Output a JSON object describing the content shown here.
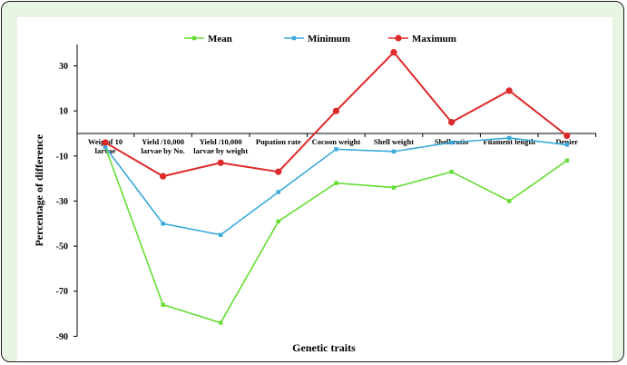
{
  "colors": {
    "frame_border": "#1a1a1a",
    "frame_background": "#e9f5e3",
    "panel_background": "#ffffff",
    "mean": "#66dd33",
    "minimum": "#3aaadd",
    "maximum": "#dd2a2a"
  },
  "chart_data": {
    "type": "line",
    "title": "",
    "xlabel": "Genetic traits",
    "ylabel": "Percentage of difference",
    "ylim": [
      -90,
      40
    ],
    "yticks": [
      30,
      10,
      -10,
      -30,
      -50,
      -70,
      -90
    ],
    "grid": false,
    "legend_position": "top",
    "categories": [
      [
        "Weig of 10",
        "larvae"
      ],
      [
        "Yield /10,000",
        "larvae by No."
      ],
      [
        "Yield /10,000",
        "larvae by weight"
      ],
      [
        "Pupation rate"
      ],
      [
        "Cocoon weight"
      ],
      [
        "Shell weight"
      ],
      [
        "Shell   ratio"
      ],
      [
        "Filament length"
      ],
      [
        "Denier"
      ]
    ],
    "series": [
      {
        "name": "Mean",
        "key": "mean",
        "marker": "square",
        "values": [
          -6,
          -76,
          -84,
          -39,
          -22,
          -24,
          -17,
          -30,
          -12
        ]
      },
      {
        "name": "Minimum",
        "key": "minimum",
        "marker": "square",
        "values": [
          -6,
          -40,
          -45,
          -26,
          -7,
          -8,
          -4,
          -2,
          -5
        ]
      },
      {
        "name": "Maximum",
        "key": "maximum",
        "marker": "circle",
        "values": [
          -4,
          -19,
          -13,
          -17,
          10,
          36,
          5,
          19,
          -1
        ]
      }
    ]
  }
}
